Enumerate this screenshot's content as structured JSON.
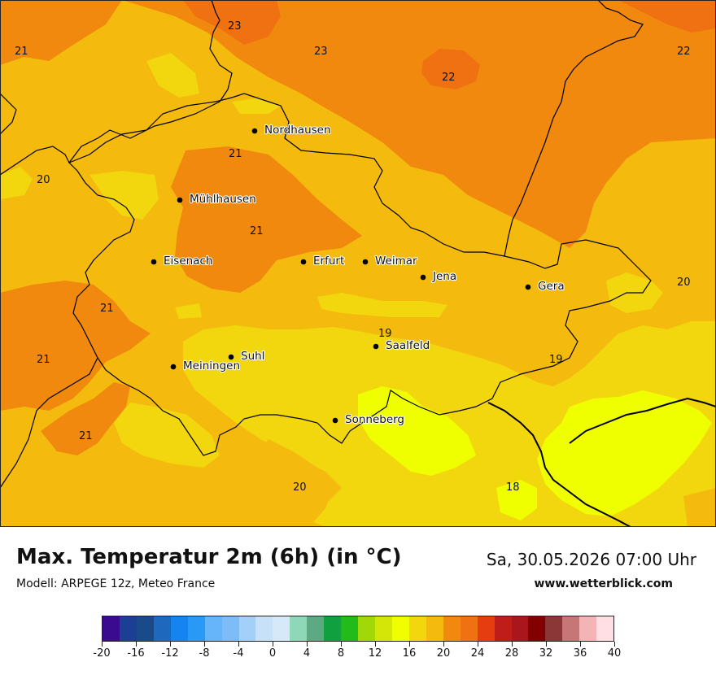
{
  "map": {
    "region": "Thüringen",
    "cities": [
      {
        "name": "Nordhausen",
        "id": "nordhausen"
      },
      {
        "name": "Mühlhausen",
        "id": "muehlhausen"
      },
      {
        "name": "Eisenach",
        "id": "eisenach"
      },
      {
        "name": "Erfurt",
        "id": "erfurt"
      },
      {
        "name": "Weimar",
        "id": "weimar"
      },
      {
        "name": "Jena",
        "id": "jena"
      },
      {
        "name": "Gera",
        "id": "gera"
      },
      {
        "name": "Suhl",
        "id": "suhl"
      },
      {
        "name": "Meiningen",
        "id": "meiningen"
      },
      {
        "name": "Saalfeld",
        "id": "saalfeld"
      },
      {
        "name": "Sonneberg",
        "id": "sonneberg"
      }
    ],
    "isoline_labels": [
      "21",
      "23",
      "23",
      "22",
      "22",
      "21",
      "20",
      "21",
      "21",
      "21",
      "21",
      "20",
      "19",
      "19",
      "21",
      "20",
      "18"
    ],
    "colors": {
      "t18_19": "#efff00",
      "t19_20": "#f2d70e",
      "t20_21": "#f4ba0e",
      "t21_22": "#f0890e",
      "t22_23": "#ef7112",
      "boundary": "#000000"
    }
  },
  "header": {
    "title": "Max. Temperatur 2m (6h) (in °C)",
    "model": "Modell: ARPEGE 12z, Meteo France",
    "datetime": "Sa, 30.05.2026 07:00 Uhr",
    "website": "www.wetterblick.com"
  },
  "legend": {
    "colors": [
      "#3b0b8f",
      "#1d3f93",
      "#1b4a8a",
      "#1e68be",
      "#1684ee",
      "#2a99f5",
      "#66b4f9",
      "#7dbcf7",
      "#a3d0f8",
      "#c7e1f9",
      "#d6e9f9",
      "#8ed8b8",
      "#5daa82",
      "#10a040",
      "#22bb1a",
      "#a2d708",
      "#d4e607",
      "#efff00",
      "#f2d70e",
      "#f4ba0e",
      "#f0890e",
      "#ef7112",
      "#e53c10",
      "#bf1d1a",
      "#a9161c",
      "#820100",
      "#8c3737",
      "#c67677",
      "#f4b3b5",
      "#ffdfe4"
    ],
    "tick_labels": [
      "-20",
      "-16",
      "-12",
      "-8",
      "-4",
      "0",
      "4",
      "8",
      "12",
      "16",
      "20",
      "24",
      "28",
      "32",
      "36",
      "40"
    ]
  }
}
